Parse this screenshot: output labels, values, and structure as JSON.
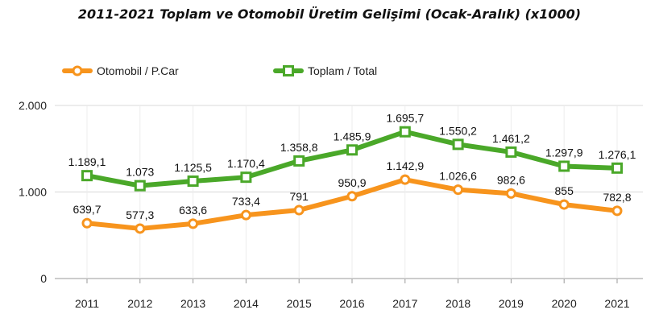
{
  "chart_data": {
    "type": "line",
    "title": "2011-2021 Toplam ve Otomobil Üretim Gelişimi (Ocak-Aralık) (x1000)",
    "categories": [
      "2011",
      "2012",
      "2013",
      "2014",
      "2015",
      "2016",
      "2017",
      "2018",
      "2019",
      "2020",
      "2021"
    ],
    "ylim": [
      0,
      2000
    ],
    "yticks": [
      0,
      1000,
      2000
    ],
    "ytick_labels": [
      "0",
      "1.000",
      "2.000"
    ],
    "grid": true,
    "legend_position": "top-left",
    "series": [
      {
        "name": "Otomobil / P.Car",
        "color": "#f7941d",
        "values": [
          639.7,
          577.3,
          633.6,
          733.4,
          791,
          950.9,
          1142.9,
          1026.6,
          982.6,
          855,
          782.8
        ],
        "labels": [
          "639,7",
          "577,3",
          "633,6",
          "733,4",
          "791",
          "950,9",
          "1.142,9",
          "1.026,6",
          "982,6",
          "855",
          "782,8"
        ]
      },
      {
        "name": "Toplam / Total",
        "color": "#4aa829",
        "values": [
          1189.1,
          1073,
          1125.5,
          1170.4,
          1358.8,
          1485.9,
          1695.7,
          1550.2,
          1461.2,
          1297.9,
          1276.1
        ],
        "labels": [
          "1.189,1",
          "1.073",
          "1.125,5",
          "1.170,4",
          "1.358,8",
          "1.485,9",
          "1.695,7",
          "1.550,2",
          "1.461,2",
          "1.297,9",
          "1.276,1"
        ]
      }
    ]
  }
}
